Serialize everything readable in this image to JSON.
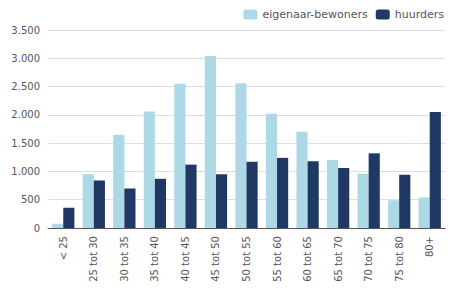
{
  "chart_data": {
    "type": "bar",
    "categories": [
      "< 25",
      "25 tot 30",
      "30 tot 35",
      "35 tot 40",
      "40 tot 45",
      "45 tot 50",
      "50 tot 55",
      "55 tot 60",
      "60 tot 65",
      "65 tot 70",
      "70 tot 75",
      "75 tot 80",
      "80+"
    ],
    "series": [
      {
        "name": "eigenaar-bewoners",
        "color": "#add8e6",
        "values": [
          75,
          950,
          1650,
          2060,
          2550,
          3040,
          2560,
          2020,
          1700,
          1200,
          960,
          490,
          540
        ]
      },
      {
        "name": "huurders",
        "color": "#1f3864",
        "values": [
          360,
          840,
          700,
          870,
          1120,
          950,
          1170,
          1240,
          1180,
          1060,
          1320,
          940,
          2050
        ]
      }
    ],
    "ylim": [
      0,
      3500
    ],
    "yticks": [
      0,
      500,
      {
        "value": 1000,
        "label": "1.000"
      },
      {
        "value": 1500,
        "label": "1.500"
      },
      {
        "value": 2000,
        "label": "2.000"
      },
      {
        "value": 2500,
        "label": "2.500"
      },
      {
        "value": 3000,
        "label": "3.000"
      },
      {
        "value": 3500,
        "label": "3.500"
      }
    ],
    "grid": true,
    "legend": "upper right"
  }
}
